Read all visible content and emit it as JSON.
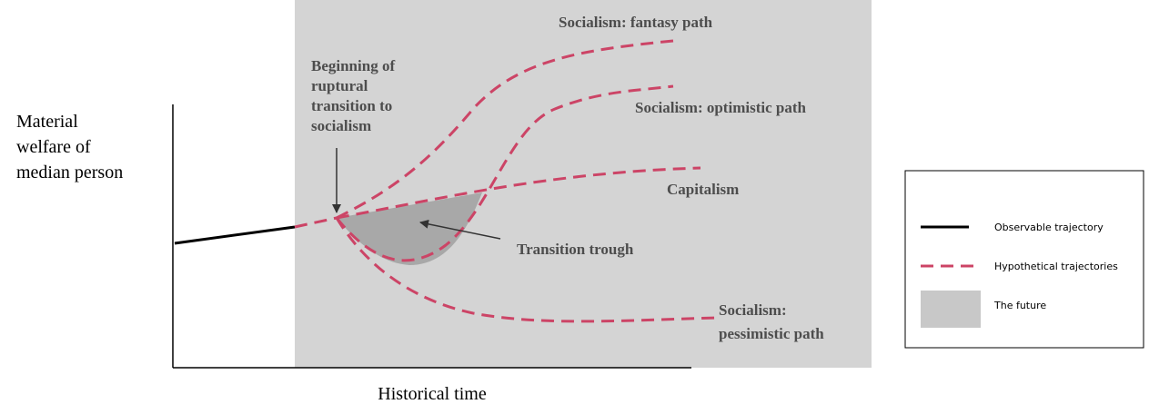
{
  "diagram": {
    "y_axis_label": [
      "Material",
      "welfare of",
      "median person"
    ],
    "x_axis_label": "Historical time",
    "annotations": {
      "beginning": [
        "Beginning of",
        "ruptural",
        "transition to",
        "socialism"
      ],
      "fantasy": "Socialism: fantasy path",
      "optimistic": "Socialism: optimistic path",
      "capitalism": "Capitalism",
      "trough": "Transition trough",
      "pessimistic": [
        "Socialism:",
        "pessimistic path"
      ]
    },
    "legend": [
      "Observable trajectory",
      "Hypothetical trajectories",
      "The future"
    ]
  }
}
